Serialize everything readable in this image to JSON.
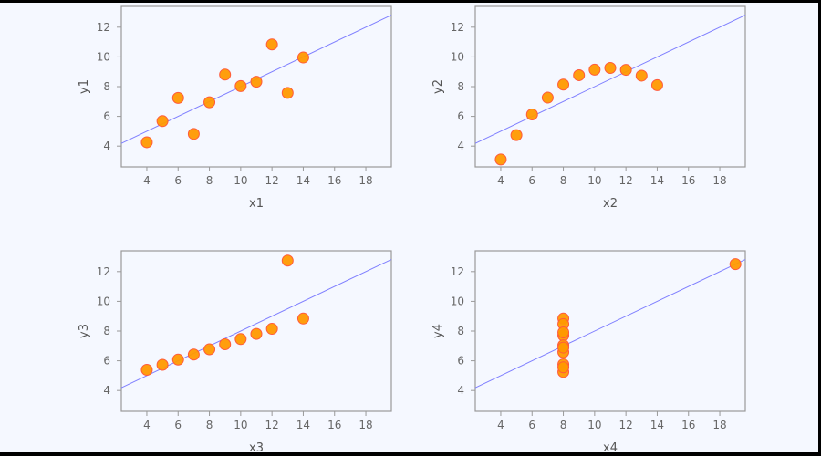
{
  "chart_data": [
    {
      "type": "scatter",
      "title": "",
      "xlabel": "x1",
      "ylabel": "y1",
      "x": [
        10,
        8,
        13,
        9,
        11,
        14,
        6,
        4,
        12,
        7,
        5
      ],
      "y": [
        8.04,
        6.95,
        7.58,
        8.81,
        8.33,
        9.96,
        7.24,
        4.26,
        10.84,
        4.82,
        5.68
      ],
      "fit": {
        "intercept": 3,
        "slope": 0.5
      },
      "xlim": [
        2.37,
        19.63
      ],
      "ylim": [
        2.6,
        13.4
      ],
      "xticks": [
        4,
        6,
        8,
        10,
        12,
        14,
        16,
        18
      ],
      "yticks": [
        4,
        6,
        8,
        10,
        12
      ],
      "grid": false
    },
    {
      "type": "scatter",
      "title": "",
      "xlabel": "x2",
      "ylabel": "y2",
      "x": [
        10,
        8,
        13,
        9,
        11,
        14,
        6,
        4,
        12,
        7,
        5
      ],
      "y": [
        9.14,
        8.14,
        8.74,
        8.77,
        9.26,
        8.1,
        6.13,
        3.1,
        9.13,
        7.26,
        4.74
      ],
      "fit": {
        "intercept": 3,
        "slope": 0.5
      },
      "xlim": [
        2.37,
        19.63
      ],
      "ylim": [
        2.6,
        13.4
      ],
      "xticks": [
        4,
        6,
        8,
        10,
        12,
        14,
        16,
        18
      ],
      "yticks": [
        4,
        6,
        8,
        10,
        12
      ],
      "grid": false
    },
    {
      "type": "scatter",
      "title": "",
      "xlabel": "x3",
      "ylabel": "y3",
      "x": [
        10,
        8,
        13,
        9,
        11,
        14,
        6,
        4,
        12,
        7,
        5
      ],
      "y": [
        7.46,
        6.77,
        12.74,
        7.11,
        7.81,
        8.84,
        6.08,
        5.39,
        8.15,
        6.42,
        5.73
      ],
      "fit": {
        "intercept": 3,
        "slope": 0.5
      },
      "xlim": [
        2.37,
        19.63
      ],
      "ylim": [
        2.6,
        13.4
      ],
      "xticks": [
        4,
        6,
        8,
        10,
        12,
        14,
        16,
        18
      ],
      "yticks": [
        4,
        6,
        8,
        10,
        12
      ],
      "grid": false
    },
    {
      "type": "scatter",
      "title": "",
      "xlabel": "x4",
      "ylabel": "y4",
      "x": [
        8,
        8,
        8,
        8,
        8,
        8,
        8,
        19,
        8,
        8,
        8
      ],
      "y": [
        6.58,
        5.76,
        7.71,
        8.84,
        8.47,
        7.04,
        5.25,
        12.5,
        5.56,
        7.91,
        6.89
      ],
      "fit": {
        "intercept": 3,
        "slope": 0.5
      },
      "xlim": [
        2.37,
        19.63
      ],
      "ylim": [
        2.6,
        13.4
      ],
      "xticks": [
        4,
        6,
        8,
        10,
        12,
        14,
        16,
        18
      ],
      "yticks": [
        4,
        6,
        8,
        10,
        12
      ],
      "grid": false
    }
  ],
  "colors": {
    "point_fill": "#ff9900",
    "point_stroke": "#ff5a3c",
    "fit_line": "#7f7fff",
    "axis": "#999999",
    "background": "#f5f8ff"
  }
}
